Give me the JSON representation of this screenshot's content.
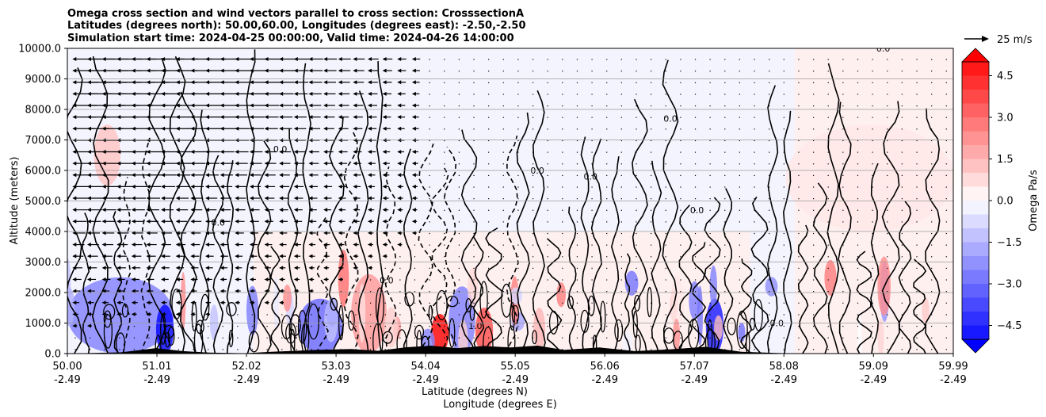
{
  "chart_data": {
    "type": "heatmap",
    "title_lines": [
      "Omega cross section and wind vectors parallel to cross section: CrosssectionA",
      "Latitudes (degrees north): 50.00,60.00, Longitudes (degrees east): -2.50,-2.50",
      "Simulation start time: 2024-04-25 00:00:00, Valid time: 2024-04-26 14:00:00"
    ],
    "ylabel": "Altitude (meters)",
    "xlabel_lines": [
      "Latitude (degrees N)",
      "Longitude (degrees E)"
    ],
    "ylim": [
      0,
      10000
    ],
    "yticks": [
      0,
      1000,
      2000,
      3000,
      4000,
      5000,
      6000,
      7000,
      8000,
      9000,
      10000
    ],
    "ytick_labels": [
      "0.0",
      "1000.0",
      "2000.0",
      "3000.0",
      "4000.0",
      "5000.0",
      "6000.0",
      "7000.0",
      "8000.0",
      "9000.0",
      "10000.0"
    ],
    "xlim": [
      50.0,
      59.99
    ],
    "xticks": [
      {
        "lat": "50.00",
        "lon": "-2.49"
      },
      {
        "lat": "51.01",
        "lon": "-2.49"
      },
      {
        "lat": "52.02",
        "lon": "-2.49"
      },
      {
        "lat": "53.03",
        "lon": "-2.49"
      },
      {
        "lat": "54.04",
        "lon": "-2.49"
      },
      {
        "lat": "55.05",
        "lon": "-2.49"
      },
      {
        "lat": "56.06",
        "lon": "-2.49"
      },
      {
        "lat": "57.07",
        "lon": "-2.49"
      },
      {
        "lat": "58.08",
        "lon": "-2.49"
      },
      {
        "lat": "59.09",
        "lon": "-2.49"
      },
      {
        "lat": "59.99",
        "lon": "-2.49"
      }
    ],
    "grid": "horizontal",
    "colorbar": {
      "label": "Omega Pa/s",
      "range": [
        -5.0,
        5.0
      ],
      "tick_values": [
        4.5,
        3.0,
        1.5,
        0.0,
        -1.5,
        -3.0,
        -4.5
      ],
      "tick_labels": [
        "4.5",
        "3.0",
        "1.5",
        "0.0",
        "−1.5",
        "−3.0",
        "−4.5"
      ],
      "colors": {
        "positive": "#ff0000",
        "negative": "#0000ff",
        "neutral": "#ffffff"
      }
    },
    "quiver_key": {
      "label": "25 m/s",
      "speed": 25
    },
    "contour_labels": [
      {
        "text": "0.0",
        "lat": 55.3,
        "alt": 5900
      },
      {
        "text": "0.0",
        "lat": 55.9,
        "alt": 5700
      },
      {
        "text": "0.0",
        "lat": 57.1,
        "alt": 4600
      },
      {
        "text": "0.0",
        "lat": 59.2,
        "alt": 9900
      },
      {
        "text": "1.0",
        "lat": 54.6,
        "alt": 800
      },
      {
        "text": "0.0",
        "lat": 58.0,
        "alt": 900
      },
      {
        "text": "0.0",
        "lat": 53.6,
        "alt": 2300
      },
      {
        "text": "0.0",
        "lat": 52.4,
        "alt": 6600
      },
      {
        "text": "0.0",
        "lat": 56.8,
        "alt": 7600
      },
      {
        "text": "0.0",
        "lat": 51.7,
        "alt": 4200
      }
    ],
    "field_description": {
      "regions": [
        {
          "lat": [
            50.0,
            51.2
          ],
          "alt": [
            0,
            2500
          ],
          "value": -2.5
        },
        {
          "lat": [
            51.0,
            51.2
          ],
          "alt": [
            0,
            1600
          ],
          "value": -5.0
        },
        {
          "lat": [
            52.6,
            53.1
          ],
          "alt": [
            0,
            1800
          ],
          "value": -3.0
        },
        {
          "lat": [
            53.2,
            53.6
          ],
          "alt": [
            0,
            2600
          ],
          "value": 2.0
        },
        {
          "lat": [
            54.1,
            54.3
          ],
          "alt": [
            0,
            1300
          ],
          "value": 5.0
        },
        {
          "lat": [
            54.3,
            54.6
          ],
          "alt": [
            0,
            2200
          ],
          "value": -2.5
        },
        {
          "lat": [
            54.6,
            54.8
          ],
          "alt": [
            0,
            1500
          ],
          "value": 3.5
        },
        {
          "lat": [
            57.2,
            57.4
          ],
          "alt": [
            0,
            1800
          ],
          "value": -4.5
        },
        {
          "lat": [
            50.3,
            50.6
          ],
          "alt": [
            5500,
            7500
          ],
          "value": 1.2
        },
        {
          "lat": [
            58.1,
            60.0
          ],
          "alt": [
            4000,
            7500
          ],
          "value": 0.5
        }
      ]
    }
  }
}
